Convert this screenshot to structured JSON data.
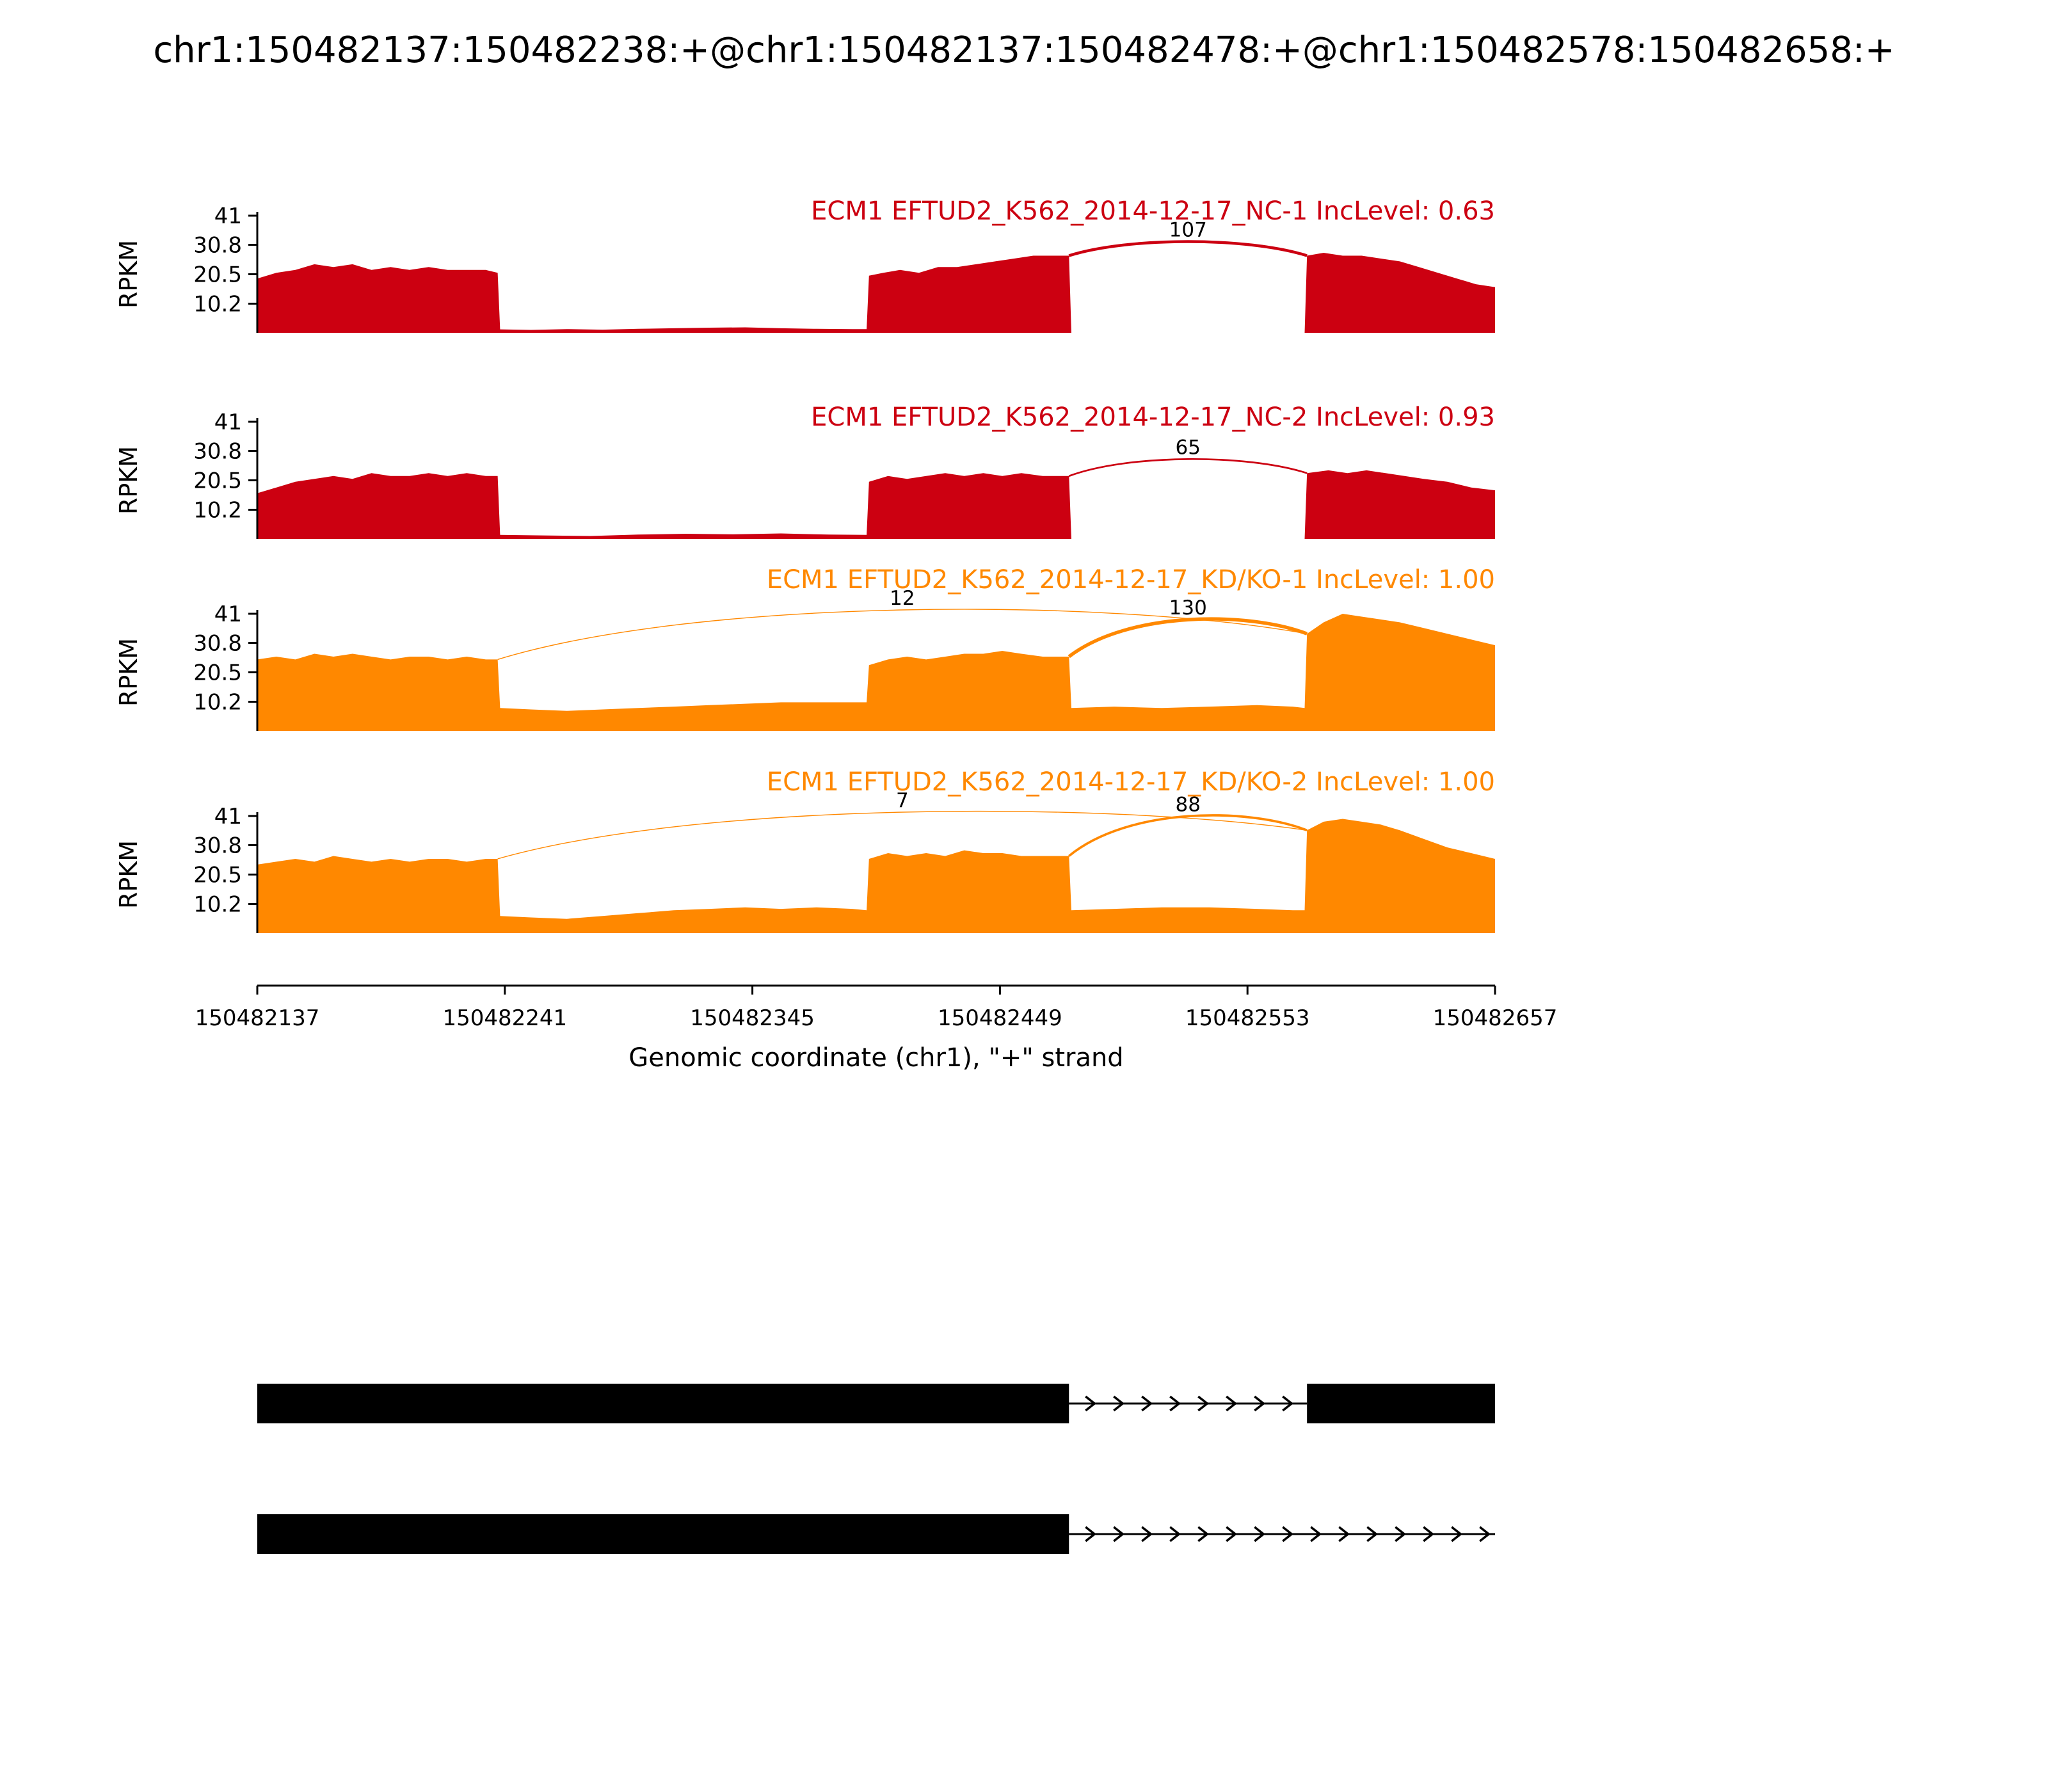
{
  "title": "chr1:150482137:150482238:+@chr1:150482137:150482478:+@chr1:150482578:150482658:+",
  "chart_data": {
    "type": "area",
    "chart_kind": "sashimi-plot",
    "xlabel": "Genomic coordinate (chr1), \"+\" strand",
    "ylabel": "RPKM",
    "x_range": [
      150482137,
      150482657
    ],
    "x_ticks": [
      150482137,
      150482241,
      150482345,
      150482449,
      150482553,
      150482657
    ],
    "y_ticks": [
      41,
      30.8,
      20.5,
      10.2
    ],
    "y_max": 41,
    "coverage_x0": 150482137,
    "tracks": [
      {
        "label": "ECM1 EFTUD2_K562_2014-12-17_NC-1 IncLevel: 0.63",
        "color": "#CC0011",
        "coverage": [
          [
            0,
            19
          ],
          [
            8,
            21
          ],
          [
            16,
            22
          ],
          [
            24,
            24
          ],
          [
            32,
            23
          ],
          [
            40,
            24
          ],
          [
            48,
            22
          ],
          [
            56,
            23
          ],
          [
            64,
            22
          ],
          [
            72,
            23
          ],
          [
            80,
            22
          ],
          [
            88,
            22
          ],
          [
            96,
            22
          ],
          [
            101,
            21
          ],
          [
            102,
            1.2
          ],
          [
            115,
            1.0
          ],
          [
            130,
            1.3
          ],
          [
            145,
            1.1
          ],
          [
            160,
            1.4
          ],
          [
            175,
            1.6
          ],
          [
            190,
            1.8
          ],
          [
            205,
            1.9
          ],
          [
            220,
            1.6
          ],
          [
            235,
            1.4
          ],
          [
            250,
            1.3
          ],
          [
            256,
            1.3
          ],
          [
            257,
            20
          ],
          [
            263,
            21
          ],
          [
            270,
            22
          ],
          [
            278,
            21
          ],
          [
            286,
            23
          ],
          [
            294,
            23
          ],
          [
            302,
            24
          ],
          [
            310,
            25
          ],
          [
            318,
            26
          ],
          [
            326,
            27
          ],
          [
            334,
            27
          ],
          [
            341,
            27
          ],
          [
            342,
            0
          ],
          [
            440,
            0
          ],
          [
            441,
            27
          ],
          [
            448,
            28
          ],
          [
            456,
            27
          ],
          [
            464,
            27
          ],
          [
            472,
            26
          ],
          [
            480,
            25
          ],
          [
            488,
            23
          ],
          [
            496,
            21
          ],
          [
            504,
            19
          ],
          [
            512,
            17
          ],
          [
            520,
            16
          ]
        ],
        "junctions": [
          {
            "start": 150482478,
            "end": 150482578,
            "count": 107
          }
        ]
      },
      {
        "label": "ECM1 EFTUD2_K562_2014-12-17_NC-2 IncLevel: 0.93",
        "color": "#CC0011",
        "coverage": [
          [
            0,
            16
          ],
          [
            8,
            18
          ],
          [
            16,
            20
          ],
          [
            24,
            21
          ],
          [
            32,
            22
          ],
          [
            40,
            21
          ],
          [
            48,
            23
          ],
          [
            56,
            22
          ],
          [
            64,
            22
          ],
          [
            72,
            23
          ],
          [
            80,
            22
          ],
          [
            88,
            23
          ],
          [
            96,
            22
          ],
          [
            101,
            22
          ],
          [
            102,
            1.4
          ],
          [
            120,
            1.2
          ],
          [
            140,
            1.0
          ],
          [
            160,
            1.5
          ],
          [
            180,
            1.8
          ],
          [
            200,
            1.6
          ],
          [
            220,
            1.9
          ],
          [
            240,
            1.5
          ],
          [
            256,
            1.4
          ],
          [
            257,
            20
          ],
          [
            265,
            22
          ],
          [
            273,
            21
          ],
          [
            281,
            22
          ],
          [
            289,
            23
          ],
          [
            297,
            22
          ],
          [
            305,
            23
          ],
          [
            313,
            22
          ],
          [
            321,
            23
          ],
          [
            330,
            22
          ],
          [
            341,
            22
          ],
          [
            342,
            0
          ],
          [
            440,
            0
          ],
          [
            441,
            23
          ],
          [
            450,
            24
          ],
          [
            458,
            23
          ],
          [
            466,
            24
          ],
          [
            474,
            23
          ],
          [
            482,
            22
          ],
          [
            490,
            21
          ],
          [
            500,
            20
          ],
          [
            510,
            18
          ],
          [
            520,
            17
          ]
        ],
        "junctions": [
          {
            "start": 150482478,
            "end": 150482578,
            "count": 65
          }
        ]
      },
      {
        "label": "ECM1 EFTUD2_K562_2014-12-17_KD/KO-1 IncLevel: 1.00",
        "color": "#FF8800",
        "coverage": [
          [
            0,
            25
          ],
          [
            8,
            26
          ],
          [
            16,
            25
          ],
          [
            24,
            27
          ],
          [
            32,
            26
          ],
          [
            40,
            27
          ],
          [
            48,
            26
          ],
          [
            56,
            25
          ],
          [
            64,
            26
          ],
          [
            72,
            26
          ],
          [
            80,
            25
          ],
          [
            88,
            26
          ],
          [
            96,
            25
          ],
          [
            101,
            25
          ],
          [
            102,
            8
          ],
          [
            115,
            7.5
          ],
          [
            130,
            7
          ],
          [
            145,
            7.5
          ],
          [
            160,
            8
          ],
          [
            175,
            8.5
          ],
          [
            190,
            9
          ],
          [
            205,
            9.5
          ],
          [
            220,
            10
          ],
          [
            235,
            10
          ],
          [
            250,
            10
          ],
          [
            256,
            10
          ],
          [
            257,
            23
          ],
          [
            265,
            25
          ],
          [
            273,
            26
          ],
          [
            281,
            25
          ],
          [
            289,
            26
          ],
          [
            297,
            27
          ],
          [
            305,
            27
          ],
          [
            313,
            28
          ],
          [
            321,
            27
          ],
          [
            330,
            26
          ],
          [
            341,
            26
          ],
          [
            342,
            8
          ],
          [
            360,
            8.5
          ],
          [
            380,
            8
          ],
          [
            400,
            8.5
          ],
          [
            420,
            9
          ],
          [
            435,
            8.5
          ],
          [
            440,
            8
          ],
          [
            441,
            34
          ],
          [
            448,
            38
          ],
          [
            456,
            41
          ],
          [
            464,
            40
          ],
          [
            472,
            39
          ],
          [
            480,
            38
          ],
          [
            490,
            36
          ],
          [
            500,
            34
          ],
          [
            510,
            32
          ],
          [
            520,
            30
          ]
        ],
        "junctions": [
          {
            "start": 150482238,
            "end": 150482578,
            "count": 12
          },
          {
            "start": 150482478,
            "end": 150482578,
            "count": 130
          }
        ]
      },
      {
        "label": "ECM1 EFTUD2_K562_2014-12-17_KD/KO-2 IncLevel: 1.00",
        "color": "#FF8800",
        "coverage": [
          [
            0,
            24
          ],
          [
            8,
            25
          ],
          [
            16,
            26
          ],
          [
            24,
            25
          ],
          [
            32,
            27
          ],
          [
            40,
            26
          ],
          [
            48,
            25
          ],
          [
            56,
            26
          ],
          [
            64,
            25
          ],
          [
            72,
            26
          ],
          [
            80,
            26
          ],
          [
            88,
            25
          ],
          [
            96,
            26
          ],
          [
            101,
            26
          ],
          [
            102,
            6
          ],
          [
            115,
            5.5
          ],
          [
            130,
            5
          ],
          [
            145,
            6
          ],
          [
            160,
            7
          ],
          [
            175,
            8
          ],
          [
            190,
            8.5
          ],
          [
            205,
            9
          ],
          [
            220,
            8.5
          ],
          [
            235,
            9
          ],
          [
            250,
            8.5
          ],
          [
            256,
            8
          ],
          [
            257,
            26
          ],
          [
            265,
            28
          ],
          [
            273,
            27
          ],
          [
            281,
            28
          ],
          [
            289,
            27
          ],
          [
            297,
            29
          ],
          [
            305,
            28
          ],
          [
            313,
            28
          ],
          [
            321,
            27
          ],
          [
            330,
            27
          ],
          [
            341,
            27
          ],
          [
            342,
            8
          ],
          [
            360,
            8.5
          ],
          [
            380,
            9
          ],
          [
            400,
            9
          ],
          [
            420,
            8.5
          ],
          [
            435,
            8
          ],
          [
            440,
            8
          ],
          [
            441,
            36
          ],
          [
            448,
            39
          ],
          [
            456,
            40
          ],
          [
            464,
            39
          ],
          [
            472,
            38
          ],
          [
            480,
            36
          ],
          [
            490,
            33
          ],
          [
            500,
            30
          ],
          [
            510,
            28
          ],
          [
            520,
            26
          ]
        ],
        "junctions": [
          {
            "start": 150482238,
            "end": 150482578,
            "count": 7
          },
          {
            "start": 150482478,
            "end": 150482578,
            "count": 88
          }
        ]
      }
    ],
    "isoforms": [
      {
        "exons": [
          [
            150482137,
            150482478
          ],
          [
            150482578,
            150482658
          ]
        ],
        "intron_line": [
          150482478,
          150482578
        ]
      },
      {
        "exons": [
          [
            150482137,
            150482478
          ]
        ],
        "intron_line": [
          150482478,
          150482658
        ]
      }
    ]
  }
}
